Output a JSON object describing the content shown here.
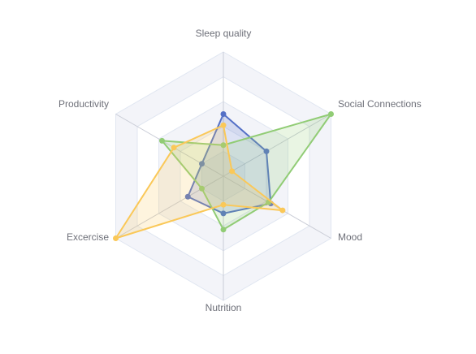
{
  "chart_data": {
    "type": "radar",
    "title": "",
    "indicators": [
      "Sleep quality",
      "Social Connections",
      "Mood",
      "Nutrition",
      "Excercise",
      "Productivity"
    ],
    "max": 10,
    "split_number": 5,
    "grid": true,
    "legend": "none",
    "series": [
      {
        "color": "#5470c6",
        "values": [
          5,
          4,
          4.4,
          3,
          3.3,
          2
        ]
      },
      {
        "color": "#91cc75",
        "values": [
          2.5,
          10,
          4.2,
          4.3,
          2,
          5.7
        ]
      },
      {
        "color": "#fac858",
        "values": [
          4.1,
          0.8,
          5.5,
          2.3,
          10,
          4.6
        ]
      }
    ],
    "colors": {
      "split_area_a": "#f3f4f9",
      "split_area_b": "#ffffff",
      "split_line": "#e0e6f1",
      "axis_line": "#c9ccd6",
      "label": "#6e7079"
    }
  }
}
